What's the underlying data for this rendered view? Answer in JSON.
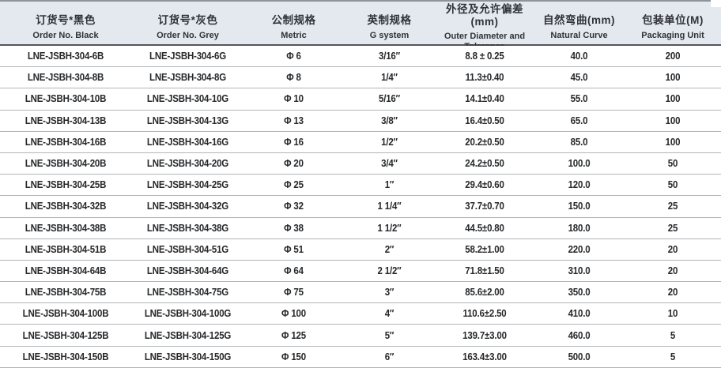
{
  "colors": {
    "header_bg": "#e4e9ef",
    "top_border": "#8e9399",
    "header_border": "#53575c",
    "row_border": "#b0b4b8",
    "text": "#26282a"
  },
  "table": {
    "columns": [
      {
        "key": "order-black",
        "zh": "订货号*黑色",
        "en": "Order No. Black"
      },
      {
        "key": "order-grey",
        "zh": "订货号*灰色",
        "en": "Order No. Grey"
      },
      {
        "key": "metric",
        "zh": "公制规格",
        "en": "Metric"
      },
      {
        "key": "g-system",
        "zh": "英制规格",
        "en": "G system"
      },
      {
        "key": "od-tolerance",
        "zh": "外径及允许偏差(mm)",
        "en": "Outer Diameter and Tolerance"
      },
      {
        "key": "natural-curve",
        "zh": "自然弯曲(mm)",
        "en": "Natural Curve"
      },
      {
        "key": "packaging-unit",
        "zh": "包装单位(M)",
        "en": "Packaging Unit"
      }
    ],
    "rows": [
      [
        "LNE-JSBH-304-6B",
        "LNE-JSBH-304-6G",
        "Φ 6",
        "3/16″",
        "8.8 ± 0.25",
        "40.0",
        "200"
      ],
      [
        "LNE-JSBH-304-8B",
        "LNE-JSBH-304-8G",
        "Φ 8",
        "1/4″",
        "11.3±0.40",
        "45.0",
        "100"
      ],
      [
        "LNE-JSBH-304-10B",
        "LNE-JSBH-304-10G",
        "Φ 10",
        "5/16″",
        "14.1±0.40",
        "55.0",
        "100"
      ],
      [
        "LNE-JSBH-304-13B",
        "LNE-JSBH-304-13G",
        "Φ 13",
        "3/8″",
        "16.4±0.50",
        "65.0",
        "100"
      ],
      [
        "LNE-JSBH-304-16B",
        "LNE-JSBH-304-16G",
        "Φ 16",
        "1/2″",
        "20.2±0.50",
        "85.0",
        "100"
      ],
      [
        "LNE-JSBH-304-20B",
        "LNE-JSBH-304-20G",
        "Φ 20",
        "3/4″",
        "24.2±0.50",
        "100.0",
        "50"
      ],
      [
        "LNE-JSBH-304-25B",
        "LNE-JSBH-304-25G",
        "Φ 25",
        "1″",
        "29.4±0.60",
        "120.0",
        "50"
      ],
      [
        "LNE-JSBH-304-32B",
        "LNE-JSBH-304-32G",
        "Φ 32",
        "1 1/4″",
        "37.7±0.70",
        "150.0",
        "25"
      ],
      [
        "LNE-JSBH-304-38B",
        "LNE-JSBH-304-38G",
        "Φ 38",
        "1 1/2″",
        "44.5±0.80",
        "180.0",
        "25"
      ],
      [
        "LNE-JSBH-304-51B",
        "LNE-JSBH-304-51G",
        "Φ 51",
        "2″",
        "58.2±1.00",
        "220.0",
        "20"
      ],
      [
        "LNE-JSBH-304-64B",
        "LNE-JSBH-304-64G",
        "Φ 64",
        "2 1/2″",
        "71.8±1.50",
        "310.0",
        "20"
      ],
      [
        "LNE-JSBH-304-75B",
        "LNE-JSBH-304-75G",
        "Φ 75",
        "3″",
        "85.6±2.00",
        "350.0",
        "20"
      ],
      [
        "LNE-JSBH-304-100B",
        "LNE-JSBH-304-100G",
        "Φ 100",
        "4″",
        "110.6±2.50",
        "410.0",
        "10"
      ],
      [
        "LNE-JSBH-304-125B",
        "LNE-JSBH-304-125G",
        "Φ 125",
        "5″",
        "139.7±3.00",
        "460.0",
        "5"
      ],
      [
        "LNE-JSBH-304-150B",
        "LNE-JSBH-304-150G",
        "Φ 150",
        "6″",
        "163.4±3.00",
        "500.0",
        "5"
      ]
    ]
  }
}
